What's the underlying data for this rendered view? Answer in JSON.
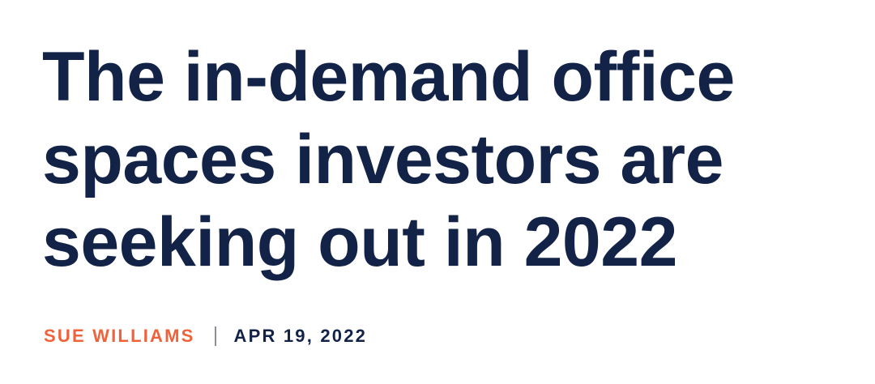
{
  "header": {
    "title_lines": [
      "The in-demand office",
      "spaces investors are",
      "seeking out in 2022"
    ],
    "author": "SUE WILLIAMS",
    "date": "APR 19, 2022"
  }
}
